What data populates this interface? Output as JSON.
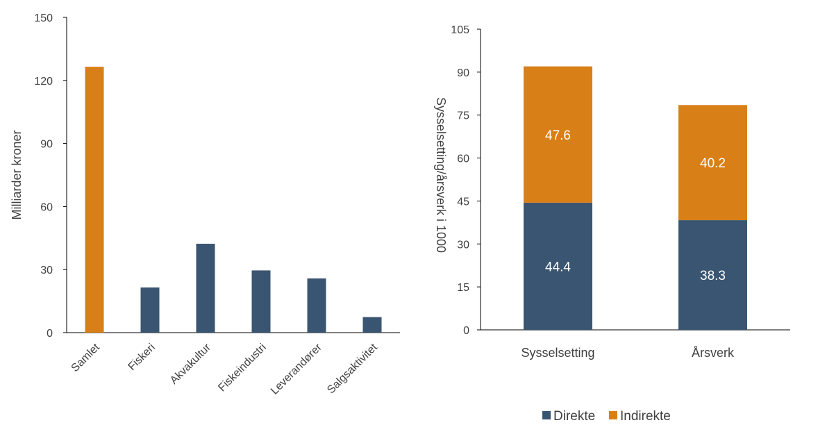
{
  "colors": {
    "orange": "#D97F17",
    "blue": "#3A5571",
    "axis": "#000000",
    "text": "#404040"
  },
  "chart_data": [
    {
      "type": "bar",
      "ylabel": "Milliarder kroner",
      "ylim": [
        0,
        150
      ],
      "yticks": [
        0,
        30,
        60,
        90,
        120,
        150
      ],
      "categories": [
        "Samlet",
        "Fiskeri",
        "Akvakultur",
        "Fiskeindustri",
        "Leverandører",
        "Salgsaktivitet"
      ],
      "values": [
        126.5,
        21.5,
        42.3,
        29.6,
        25.8,
        7.4
      ],
      "bar_colors": [
        "orange",
        "blue",
        "blue",
        "blue",
        "blue",
        "blue"
      ]
    },
    {
      "type": "bar",
      "stacked": true,
      "ylabel": "Sysselsetting/årsverk i 1000",
      "ylim": [
        0,
        105
      ],
      "yticks": [
        0,
        15,
        30,
        45,
        60,
        75,
        90,
        105
      ],
      "categories": [
        "Sysselsetting",
        "Årsverk"
      ],
      "series": [
        {
          "name": "Direkte",
          "values": [
            44.4,
            38.3
          ],
          "color": "blue"
        },
        {
          "name": "Indirekte",
          "values": [
            47.6,
            40.2
          ],
          "color": "orange"
        }
      ],
      "legend": "bottom"
    }
  ]
}
